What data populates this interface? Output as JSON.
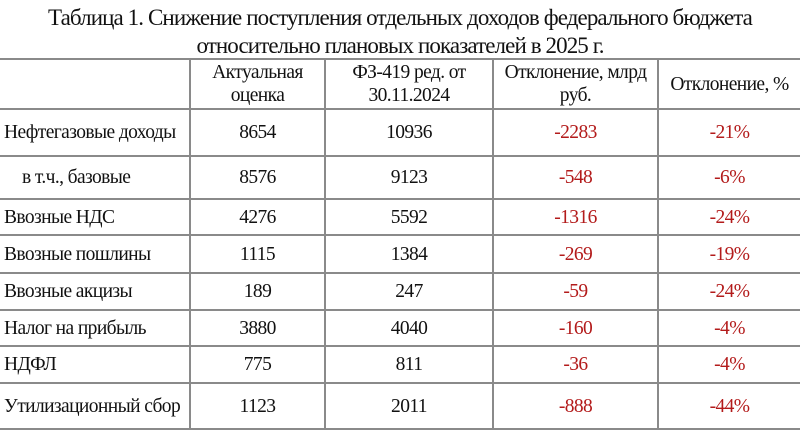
{
  "title_line1": "Таблица 1. Снижение поступления отдельных доходов федерального бюджета",
  "title_line2": "относительно плановых показателей в 2025 г.",
  "headers": [
    "",
    "Актуальная оценка",
    "ФЗ-419 ред. от 30.11.2024",
    "Отклонение, млрд руб.",
    "Отклонение, %"
  ],
  "colors": {
    "negative": "#b31b1b",
    "border": "#8a8a8a"
  },
  "rows": [
    {
      "name": "Нефтегазовые доходы",
      "actual": "8654",
      "plan": "10936",
      "dev_abs": "-2283",
      "dev_pct": "-21%"
    },
    {
      "name": "в т.ч., базовые",
      "actual": "8576",
      "plan": "9123",
      "dev_abs": "-548",
      "dev_pct": "-6%"
    },
    {
      "name": "Ввозные НДС",
      "actual": "4276",
      "plan": "5592",
      "dev_abs": "-1316",
      "dev_pct": "-24%"
    },
    {
      "name": "Ввозные пошлины",
      "actual": "1115",
      "plan": "1384",
      "dev_abs": "-269",
      "dev_pct": "-19%"
    },
    {
      "name": "Ввозные акцизы",
      "actual": "189",
      "plan": "247",
      "dev_abs": "-59",
      "dev_pct": "-24%"
    },
    {
      "name": "Налог на прибыль",
      "actual": "3880",
      "plan": "4040",
      "dev_abs": "-160",
      "dev_pct": "-4%"
    },
    {
      "name": "НДФЛ",
      "actual": "775",
      "plan": "811",
      "dev_abs": "-36",
      "dev_pct": "-4%"
    },
    {
      "name": "Утилизационный сбор",
      "actual": "1123",
      "plan": "2011",
      "dev_abs": "-888",
      "dev_pct": "-44%"
    }
  ]
}
